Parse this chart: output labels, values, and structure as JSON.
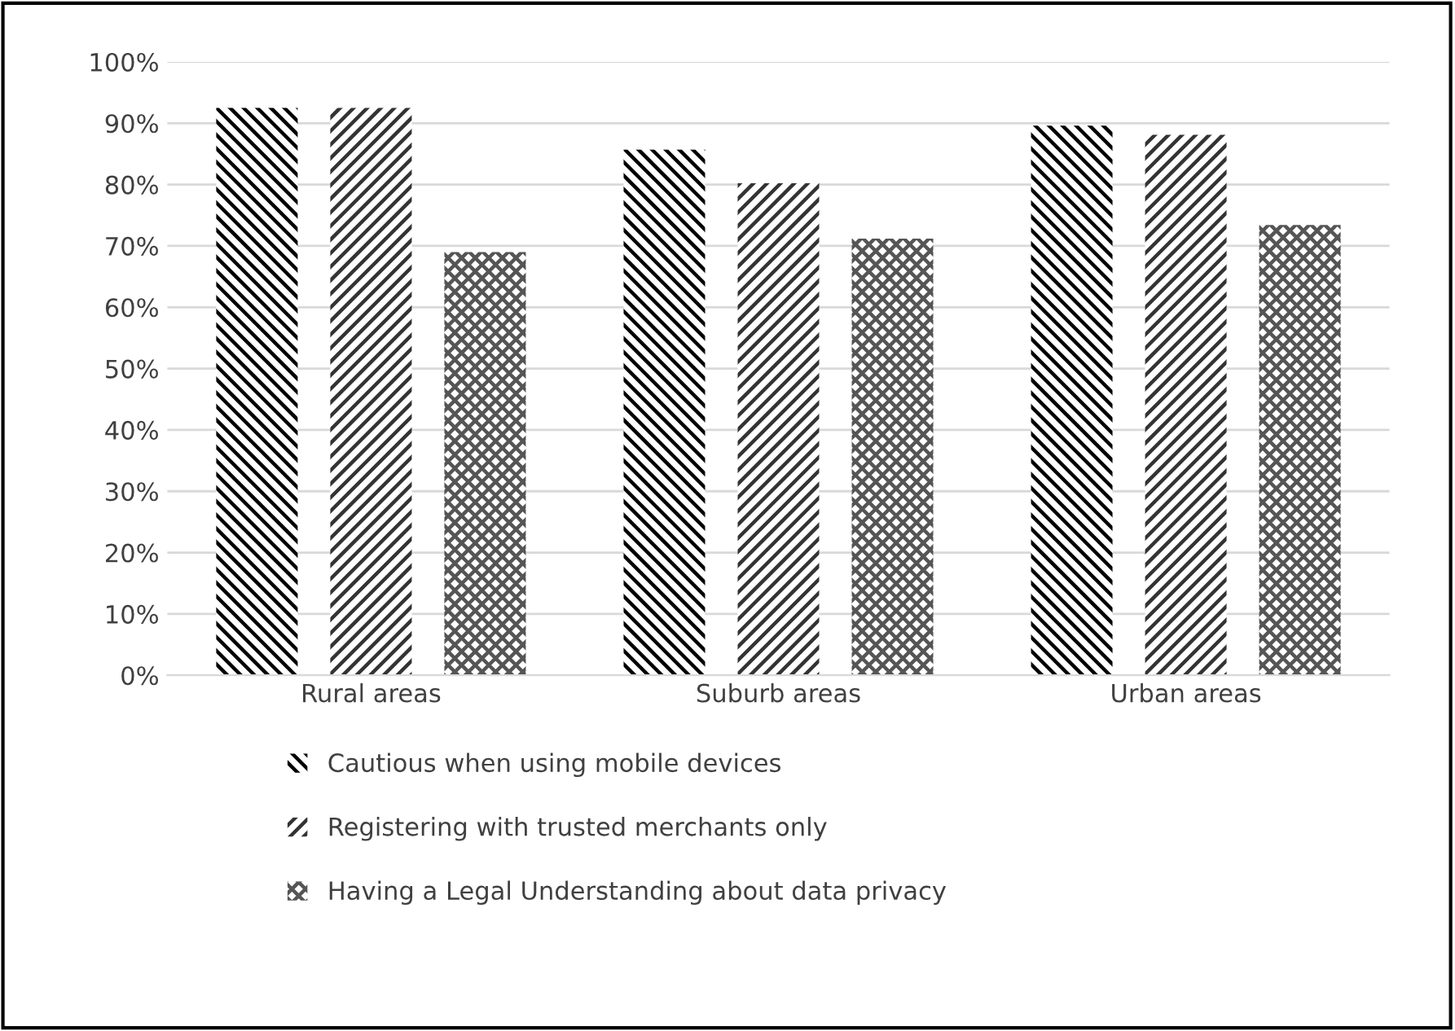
{
  "chart_data": {
    "type": "bar",
    "categories": [
      "Rural areas",
      "Suburb areas",
      "Urban areas"
    ],
    "series": [
      {
        "name": "Cautious when using mobile devices",
        "color": "#000000",
        "values": [
          92.5,
          85.7,
          89.6
        ]
      },
      {
        "name": "Registering with trusted merchants only",
        "color": "#333333",
        "values": [
          92.5,
          80.2,
          88.1
        ]
      },
      {
        "name": "Having a Legal Understanding about data privacy",
        "color": "#555555",
        "values": [
          69.0,
          71.2,
          73.4
        ]
      }
    ],
    "ylim": [
      0,
      100
    ],
    "yticks": [
      {
        "value": 0,
        "label": "0%"
      },
      {
        "value": 10,
        "label": "10%"
      },
      {
        "value": 20,
        "label": "20%"
      },
      {
        "value": 30,
        "label": "30%"
      },
      {
        "value": 40,
        "label": "40%"
      },
      {
        "value": 50,
        "label": "50%"
      },
      {
        "value": 60,
        "label": "60%"
      },
      {
        "value": 70,
        "label": "70%"
      },
      {
        "value": 80,
        "label": "80%"
      },
      {
        "value": 90,
        "label": "90%"
      },
      {
        "value": 100,
        "label": "100%"
      }
    ],
    "grid": "y",
    "legend": "bottom"
  }
}
